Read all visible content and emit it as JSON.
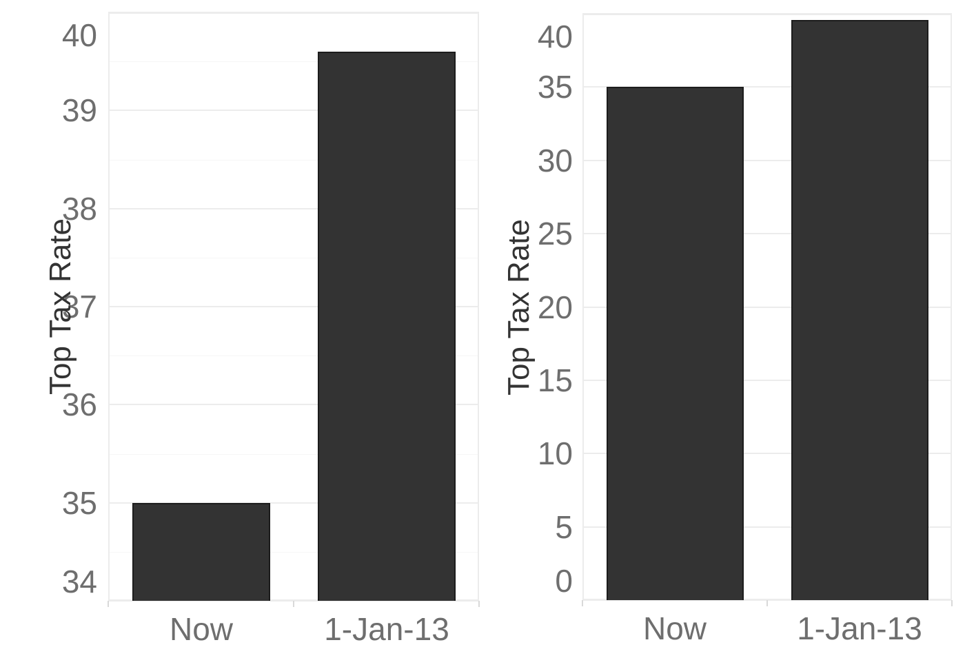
{
  "colors": {
    "background": "#ffffff",
    "bar_fill": "#333333",
    "bar_border": "#1c1c1c",
    "gridline_major": "#ececec",
    "gridline_minor": "#f6f6f6",
    "tick_label": "#6e6e6e",
    "axis_title": "#333333",
    "boundary_tick": "#d9d9d9"
  },
  "chart_data": [
    {
      "type": "bar",
      "title": "",
      "xlabel": "",
      "ylabel": "Top Tax Rate",
      "categories": [
        "Now",
        "1-Jan-13"
      ],
      "values": [
        35,
        39.6
      ],
      "ylim": [
        34,
        40
      ],
      "yticks": [
        34,
        35,
        36,
        37,
        38,
        39,
        40
      ],
      "grid": true,
      "legend": false
    },
    {
      "type": "bar",
      "title": "",
      "xlabel": "",
      "ylabel": "Top Tax Rate",
      "categories": [
        "Now",
        "1-Jan-13"
      ],
      "values": [
        35,
        39.6
      ],
      "ylim": [
        0,
        40
      ],
      "yticks": [
        0,
        5,
        10,
        15,
        20,
        25,
        30,
        35,
        40
      ],
      "grid": true,
      "legend": false
    }
  ]
}
